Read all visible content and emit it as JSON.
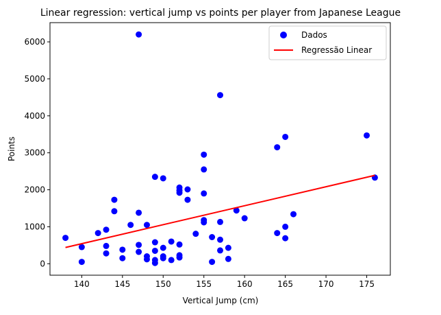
{
  "chart_data": {
    "type": "scatter",
    "title": "Linear regression: vertical jump vs points per player from Japanese League",
    "xlabel": "Vertical Jump (cm)",
    "ylabel": "Points",
    "xlim": [
      136.1,
      177.9
    ],
    "ylim": [
      -310,
      6520
    ],
    "xticks": [
      140,
      145,
      150,
      155,
      160,
      165,
      170,
      175
    ],
    "yticks": [
      0,
      1000,
      2000,
      3000,
      4000,
      5000,
      6000
    ],
    "grid": false,
    "legend_position": "top-right",
    "series": [
      {
        "name": "Dados",
        "kind": "scatter",
        "color": "#0000ff",
        "points": [
          [
            138,
            700
          ],
          [
            140,
            450
          ],
          [
            140,
            50
          ],
          [
            142,
            830
          ],
          [
            143,
            920
          ],
          [
            143,
            480
          ],
          [
            143,
            280
          ],
          [
            144,
            1730
          ],
          [
            144,
            1420
          ],
          [
            145,
            380
          ],
          [
            145,
            150
          ],
          [
            146,
            1050
          ],
          [
            147,
            6200
          ],
          [
            147,
            1380
          ],
          [
            147,
            510
          ],
          [
            147,
            320
          ],
          [
            148,
            1050
          ],
          [
            148,
            200
          ],
          [
            148,
            120
          ],
          [
            149,
            2350
          ],
          [
            149,
            580
          ],
          [
            149,
            350
          ],
          [
            149,
            100
          ],
          [
            149,
            20
          ],
          [
            150,
            2310
          ],
          [
            150,
            430
          ],
          [
            150,
            200
          ],
          [
            150,
            150
          ],
          [
            151,
            600
          ],
          [
            151,
            100
          ],
          [
            152,
            2060
          ],
          [
            152,
            1980
          ],
          [
            152,
            1920
          ],
          [
            152,
            520
          ],
          [
            152,
            230
          ],
          [
            152,
            170
          ],
          [
            153,
            2010
          ],
          [
            153,
            1730
          ],
          [
            154,
            810
          ],
          [
            155,
            2950
          ],
          [
            155,
            2550
          ],
          [
            155,
            1900
          ],
          [
            155,
            1180
          ],
          [
            155,
            1120
          ],
          [
            156,
            720
          ],
          [
            156,
            50
          ],
          [
            157,
            4560
          ],
          [
            157,
            1130
          ],
          [
            157,
            650
          ],
          [
            157,
            360
          ],
          [
            158,
            430
          ],
          [
            158,
            130
          ],
          [
            159,
            1440
          ],
          [
            160,
            1230
          ],
          [
            164,
            3150
          ],
          [
            164,
            830
          ],
          [
            165,
            3430
          ],
          [
            165,
            1000
          ],
          [
            165,
            690
          ],
          [
            166,
            1340
          ],
          [
            175,
            3470
          ],
          [
            176,
            2330
          ]
        ]
      },
      {
        "name": "Regressão Linear",
        "kind": "line",
        "color": "#ff0000",
        "points": [
          [
            138,
            440
          ],
          [
            176,
            2390
          ]
        ]
      }
    ]
  }
}
